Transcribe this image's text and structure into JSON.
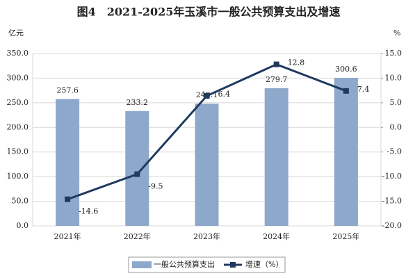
{
  "chart_data": {
    "type": "bar",
    "title": "图4　2021-2025年玉溪市一般公共预算支出及增速",
    "y_unit": "亿元",
    "y2_unit": "%",
    "categories": [
      "2021年",
      "2022年",
      "2023年",
      "2024年",
      "2025年"
    ],
    "series": [
      {
        "name": "一般公共预算支出",
        "type": "bar",
        "color": "#8ea8cc",
        "values": [
          257.6,
          233.2,
          248.1,
          279.7,
          300.6
        ]
      },
      {
        "name": "增速（%）",
        "type": "line",
        "axis": "y2",
        "color": "#1f3a5f",
        "values": [
          -14.6,
          -9.5,
          6.4,
          12.8,
          7.4
        ]
      }
    ],
    "ylim": [
      0,
      350
    ],
    "yticks": [
      {
        "value": 0,
        "label": "0.0"
      },
      {
        "value": 50,
        "label": "50.0"
      },
      {
        "value": 100,
        "label": "100.0"
      },
      {
        "value": 150,
        "label": "150.0"
      },
      {
        "value": 200,
        "label": "200.0"
      },
      {
        "value": 250,
        "label": "250.0"
      },
      {
        "value": 300,
        "label": "300.0"
      },
      {
        "value": 350,
        "label": "350.0"
      }
    ],
    "y2lim": [
      -20,
      15
    ],
    "y2ticks": [
      {
        "value": -20,
        "label": "-20.0"
      },
      {
        "value": -15,
        "label": "-15.0"
      },
      {
        "value": -10,
        "label": "-10.0"
      },
      {
        "value": -5,
        "label": "-5.0"
      },
      {
        "value": 0,
        "label": "0.0"
      },
      {
        "value": 5,
        "label": "5.0"
      },
      {
        "value": 10,
        "label": "10.0"
      },
      {
        "value": 15,
        "label": "15.0"
      }
    ],
    "grid": true
  }
}
